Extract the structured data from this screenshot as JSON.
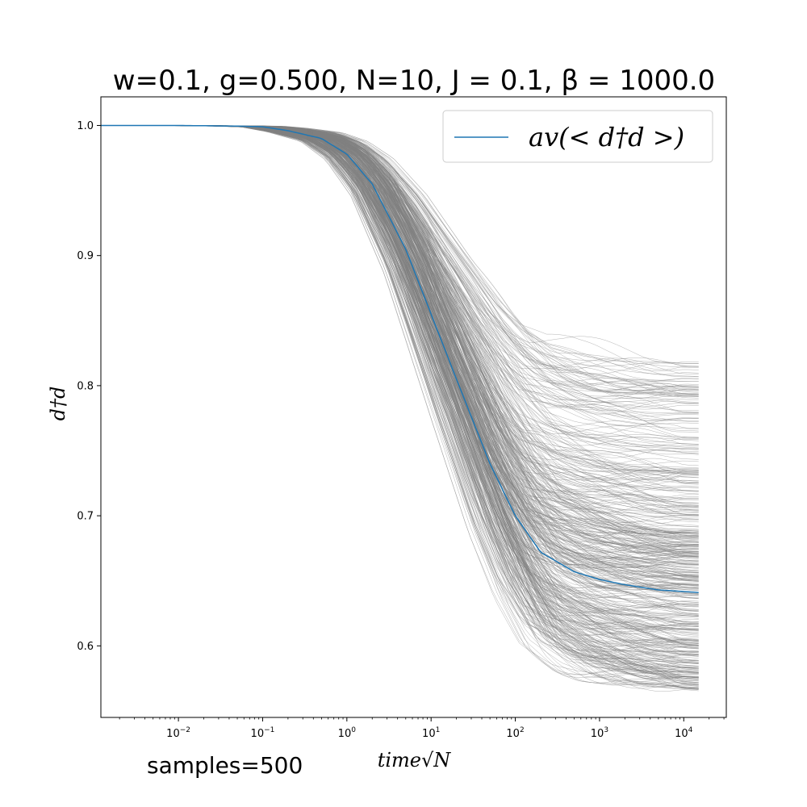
{
  "chart_data": {
    "type": "line",
    "title": "w=0.1, g=0.500, N=10, J = 0.1, β = 1000.0",
    "xlabel": "time√N",
    "ylabel": "d†d",
    "x_scale": "log",
    "xlim": [
      0.0012,
      32000
    ],
    "ylim": [
      0.545,
      1.022
    ],
    "x_ticks": [
      {
        "value": 0.01,
        "base": "10",
        "exp": "−2"
      },
      {
        "value": 0.1,
        "base": "10",
        "exp": "−1"
      },
      {
        "value": 1,
        "base": "10",
        "exp": "0"
      },
      {
        "value": 10,
        "base": "10",
        "exp": "1"
      },
      {
        "value": 100,
        "base": "10",
        "exp": "2"
      },
      {
        "value": 1000,
        "base": "10",
        "exp": "3"
      },
      {
        "value": 10000,
        "base": "10",
        "exp": "4"
      }
    ],
    "y_ticks": [
      {
        "value": 0.6,
        "label": "0.6"
      },
      {
        "value": 0.7,
        "label": "0.7"
      },
      {
        "value": 0.8,
        "label": "0.8"
      },
      {
        "value": 0.9,
        "label": "0.9"
      },
      {
        "value": 1.0,
        "label": "1.0"
      }
    ],
    "grid": false,
    "legend": {
      "placement": "top-right",
      "entries": [
        "av(< d†d >)"
      ]
    },
    "series": [
      {
        "name": "av(< d†d >)",
        "color": "#1f77b4",
        "x": [
          0.0012,
          0.01,
          0.05,
          0.1,
          0.2,
          0.5,
          1,
          2,
          5,
          10,
          20,
          50,
          100,
          200,
          500,
          1000,
          2000,
          5000,
          15000
        ],
        "y": [
          1.0,
          1.0,
          0.9995,
          0.999,
          0.996,
          0.99,
          0.978,
          0.955,
          0.905,
          0.855,
          0.805,
          0.74,
          0.7,
          0.672,
          0.657,
          0.651,
          0.647,
          0.643,
          0.641
        ]
      }
    ],
    "samples": {
      "label": "samples=500",
      "count": 500,
      "color": "#808080",
      "final_value_range": [
        0.565,
        0.82
      ]
    }
  }
}
